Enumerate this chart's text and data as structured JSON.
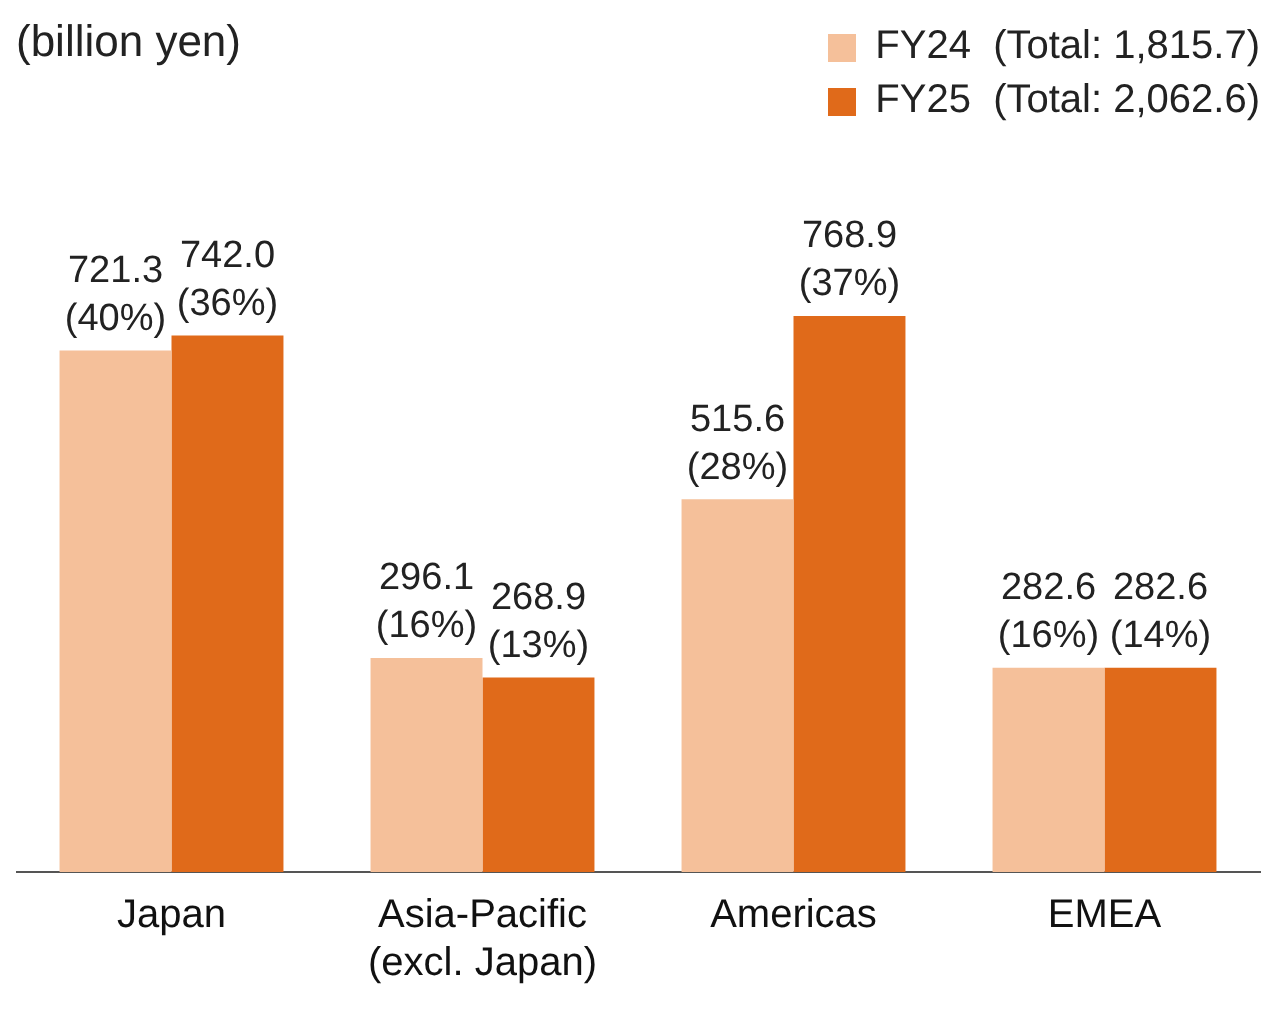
{
  "chart_data": {
    "type": "bar",
    "annotations": [
      "(billion yen)"
    ],
    "categories": [
      "Japan",
      "Asia-Pacific (excl. Japan)",
      "Americas",
      "EMEA"
    ],
    "series": [
      {
        "name": "FY24  (Total: 1,815.7)",
        "color": "#f5c09a",
        "values": [
          721.3,
          296.1,
          515.6,
          282.6
        ],
        "value_labels": [
          "721.3\n(40%)",
          "296.1\n(16%)",
          "515.6\n(28%)",
          "282.6\n(16%)"
        ]
      },
      {
        "name": "FY25  (Total: 2,062.6)",
        "color": "#e06a1a",
        "values": [
          742.0,
          268.9,
          768.9,
          282.6
        ],
        "value_labels": [
          "742.0\n(36%)",
          "268.9\n(13%)",
          "768.9\n(37%)",
          "282.6\n(14%)"
        ]
      }
    ],
    "legend": "top right"
  }
}
